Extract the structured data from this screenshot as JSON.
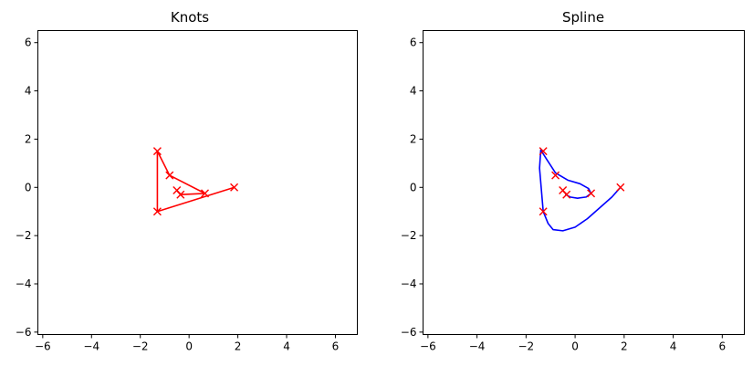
{
  "chart_data": [
    {
      "type": "line",
      "title": "Knots",
      "xlim": [
        -6.2,
        6.9
      ],
      "ylim": [
        -6.1,
        6.5
      ],
      "xticks": [
        -6,
        -4,
        -2,
        0,
        2,
        4,
        6
      ],
      "yticks": [
        -6,
        -4,
        -2,
        0,
        2,
        4,
        6
      ],
      "grid": false,
      "series": [
        {
          "kind": "line",
          "color": "#ff0000",
          "marker": "x",
          "x": [
            1.85,
            -1.3,
            -1.3,
            -0.8,
            0.65,
            -0.35,
            -0.5
          ],
          "y": [
            0.0,
            -1.0,
            1.5,
            0.5,
            -0.25,
            -0.3,
            -0.12
          ]
        }
      ]
    },
    {
      "type": "line",
      "title": "Spline",
      "xlim": [
        -6.2,
        6.9
      ],
      "ylim": [
        -6.1,
        6.5
      ],
      "xticks": [
        -6,
        -4,
        -2,
        0,
        2,
        4,
        6
      ],
      "yticks": [
        -6,
        -4,
        -2,
        0,
        2,
        4,
        6
      ],
      "grid": false,
      "series": [
        {
          "kind": "line",
          "color": "#0000ff",
          "marker": "none",
          "x": [
            -0.38,
            -0.2,
            0.1,
            0.45,
            0.65,
            0.55,
            0.2,
            -0.3,
            -0.8,
            -1.15,
            -1.4,
            -1.45,
            -1.3,
            -1.1,
            -0.9,
            -0.5,
            0.0,
            0.5,
            1.0,
            1.5,
            1.85
          ],
          "y": [
            -0.3,
            -0.4,
            -0.45,
            -0.4,
            -0.25,
            -0.05,
            0.15,
            0.3,
            0.6,
            1.15,
            1.55,
            0.8,
            -1.0,
            -1.5,
            -1.75,
            -1.8,
            -1.65,
            -1.3,
            -0.85,
            -0.4,
            0.0
          ]
        },
        {
          "kind": "scatter",
          "color": "#ff0000",
          "marker": "x",
          "x": [
            1.85,
            -1.3,
            -1.3,
            -0.8,
            0.65,
            -0.35,
            -0.5
          ],
          "y": [
            0.0,
            -1.0,
            1.5,
            0.5,
            -0.25,
            -0.3,
            -0.12
          ]
        }
      ]
    }
  ]
}
